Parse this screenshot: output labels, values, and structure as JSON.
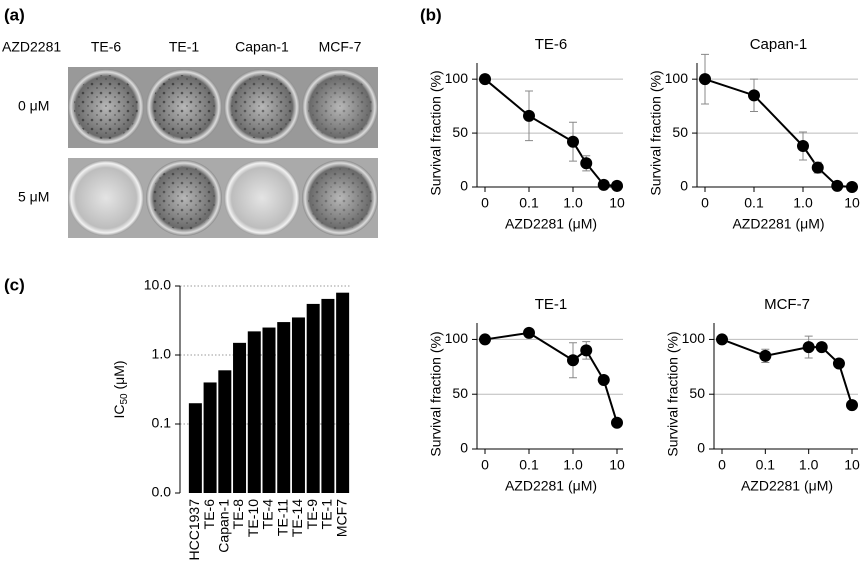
{
  "panel_labels": [
    "(a)",
    "(b)",
    "(c)"
  ],
  "panel_a": {
    "row_header": "AZD2281",
    "columns": [
      "TE-6",
      "TE-1",
      "Capan-1",
      "MCF-7"
    ],
    "rows": [
      "0 μM",
      "5 μM"
    ]
  },
  "chart_data": [
    {
      "type": "line",
      "title": "TE-6",
      "xlabel": "AZD2281 (μM)",
      "ylabel": "Survival fraction (%)",
      "xscale": "log",
      "x": [
        0,
        0.1,
        1,
        2,
        5,
        10
      ],
      "values": [
        100,
        66,
        42,
        22,
        2,
        1
      ],
      "errors": [
        0,
        23,
        18,
        7,
        0,
        0
      ],
      "xlim": [
        0,
        10
      ],
      "xticks": [
        0,
        0.1,
        {
          "value": 1,
          "label": "1.0"
        },
        10
      ],
      "ylim": [
        0,
        115
      ],
      "yticks": [
        0,
        50,
        100
      ],
      "grid": true,
      "color": "#000000"
    },
    {
      "type": "line",
      "title": "Capan-1",
      "xlabel": "AZD2281 (μM)",
      "ylabel": "Survival fraction (%)",
      "xscale": "log",
      "x": [
        0,
        0.1,
        1,
        2,
        5,
        10
      ],
      "values": [
        100,
        85,
        38,
        18,
        1,
        0
      ],
      "errors": [
        23,
        15,
        13,
        5,
        0,
        0
      ],
      "xlim": [
        0,
        10
      ],
      "xticks": [
        0,
        0.1,
        {
          "value": 1,
          "label": "1.0"
        },
        10
      ],
      "ylim": [
        0,
        115
      ],
      "yticks": [
        0,
        50,
        100
      ],
      "grid": true,
      "color": "#000000"
    },
    {
      "type": "line",
      "title": "TE-1",
      "xlabel": "AZD2281 (μM)",
      "ylabel": "Survival fraction (%)",
      "xscale": "log",
      "x": [
        0,
        0.1,
        1,
        2,
        5,
        10
      ],
      "values": [
        100,
        106,
        81,
        90,
        63,
        24
      ],
      "errors": [
        0,
        0,
        16,
        8,
        0,
        0
      ],
      "xlim": [
        0,
        10
      ],
      "xticks": [
        0,
        0.1,
        {
          "value": 1,
          "label": "1.0"
        },
        10
      ],
      "ylim": [
        0,
        115
      ],
      "yticks": [
        0,
        50,
        100
      ],
      "grid": true,
      "color": "#000000"
    },
    {
      "type": "line",
      "title": "MCF-7",
      "xlabel": "AZD2281 (μM)",
      "ylabel": "Survival fraction (%)",
      "xscale": "log",
      "x": [
        0,
        0.1,
        1,
        2,
        5,
        10
      ],
      "values": [
        100,
        85,
        93,
        93,
        78,
        40
      ],
      "errors": [
        0,
        6,
        10,
        0,
        0,
        0
      ],
      "xlim": [
        0,
        10
      ],
      "xticks": [
        0,
        0.1,
        {
          "value": 1,
          "label": "1.0"
        },
        10
      ],
      "ylim": [
        0,
        115
      ],
      "yticks": [
        0,
        50,
        100
      ],
      "grid": true,
      "color": "#000000"
    },
    {
      "type": "bar",
      "ylabel": "IC",
      "ylabel_sub": "50",
      "ylabel_unit": " (μM)",
      "yscale": "log",
      "categories": [
        "HCC1937",
        "TE-6",
        "Capan-1",
        "TE-8",
        "TE-10",
        "TE-4",
        "TE-11",
        "TE-14",
        "TE-9",
        "TE-1",
        "MCF7"
      ],
      "values": [
        0.2,
        0.4,
        0.6,
        1.5,
        2.2,
        2.5,
        3.0,
        3.5,
        5.5,
        6.5,
        8.0
      ],
      "ylim": [
        0.01,
        10
      ],
      "yticks": [
        {
          "value": 0.01,
          "label": "0.0"
        },
        0.1,
        {
          "value": 1,
          "label": "1.0"
        },
        {
          "value": 10,
          "label": "10.0"
        }
      ],
      "grid": true,
      "color": "#000000"
    }
  ]
}
